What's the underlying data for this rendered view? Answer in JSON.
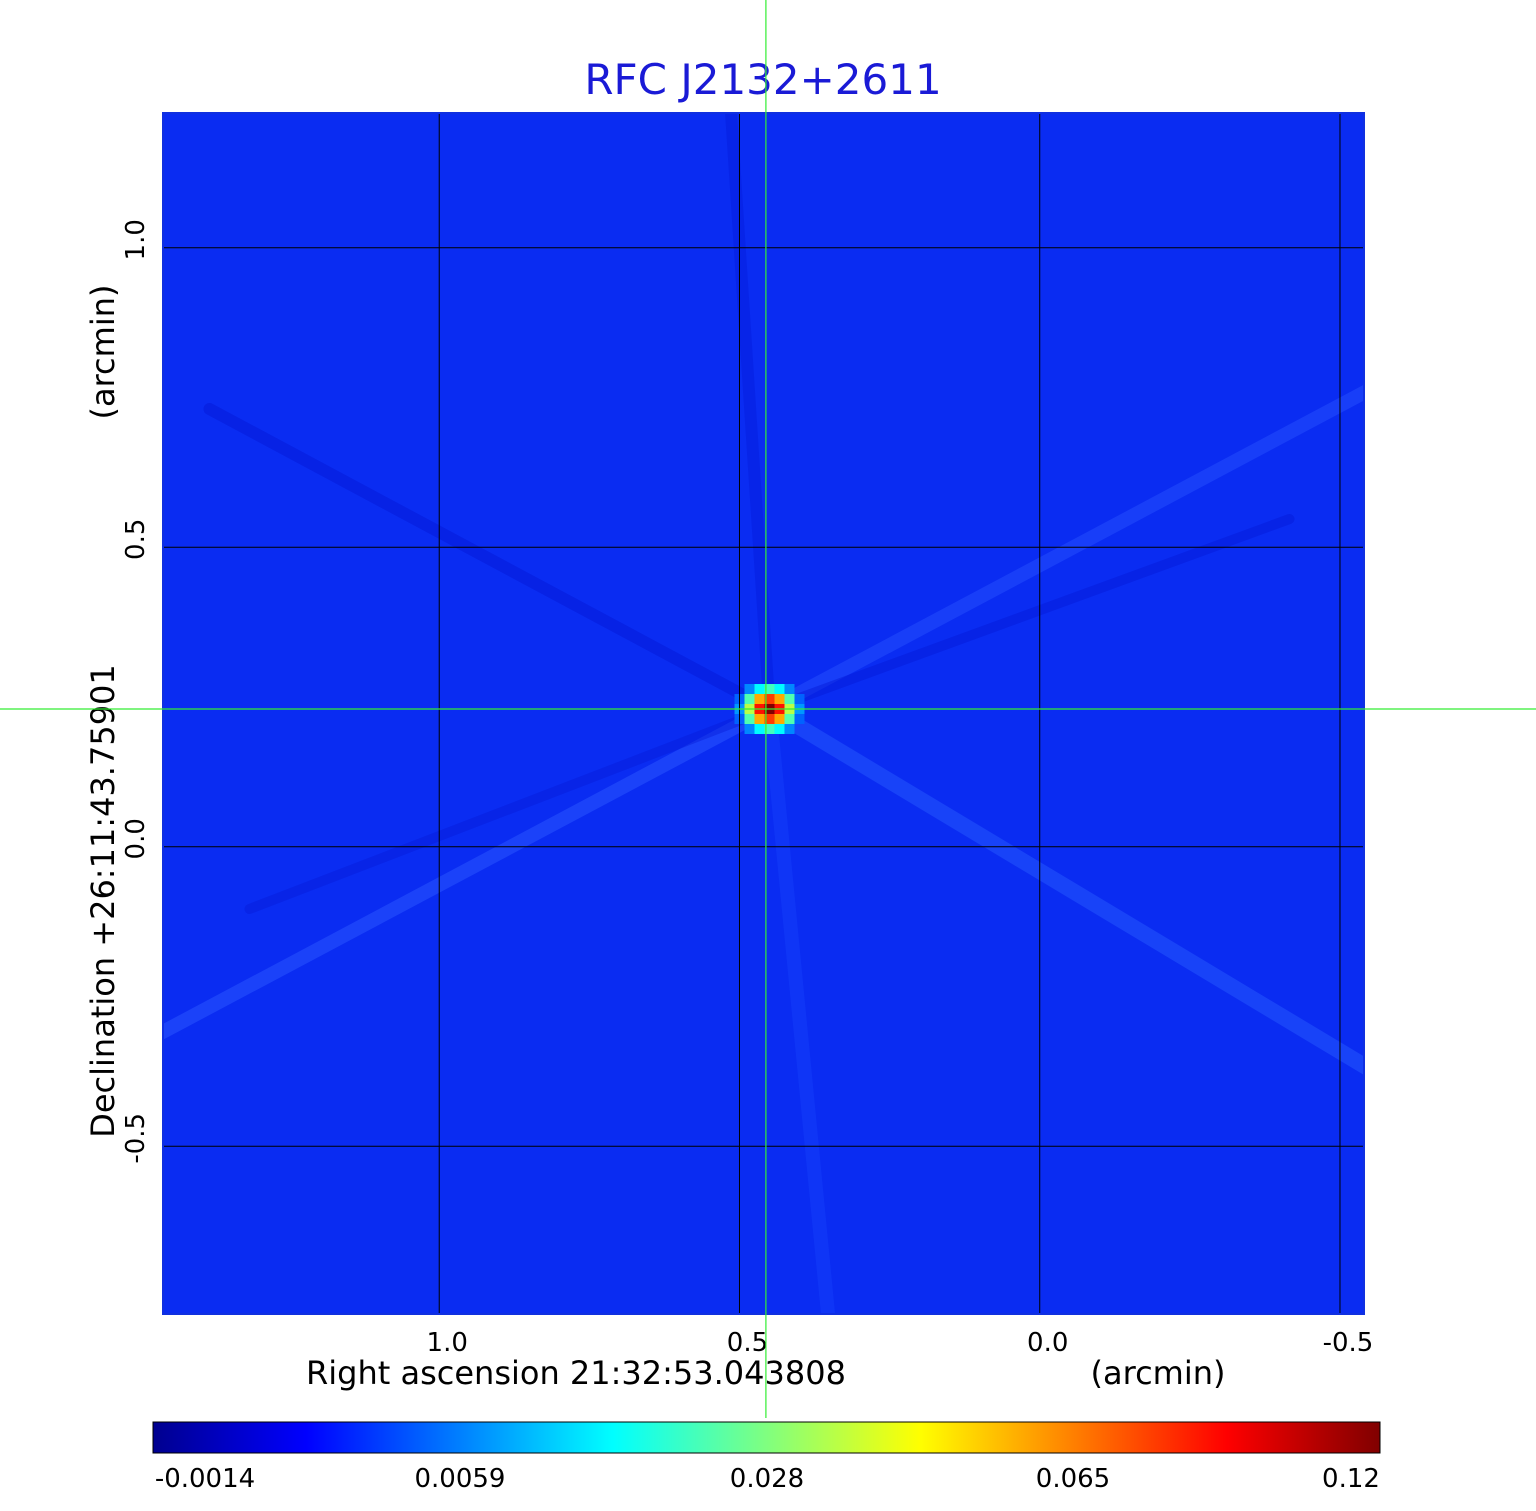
{
  "chart_data": {
    "type": "heatmap",
    "title": "RFC J2132+2611",
    "xlabel": "Right ascension  21:32:53.043808",
    "xunit": "(arcmin)",
    "ylabel": "Declination  +26:11:43.75901",
    "yunit": "(arcmin)",
    "x_ticks": [
      {
        "value": 1.0,
        "label": "1.0"
      },
      {
        "value": 0.5,
        "label": "0.5"
      },
      {
        "value": 0.0,
        "label": "0.0"
      },
      {
        "value": -0.5,
        "label": "-0.5"
      }
    ],
    "y_ticks": [
      {
        "value": 1.0,
        "label": "1.0"
      },
      {
        "value": 0.5,
        "label": "0.5"
      },
      {
        "value": 0.0,
        "label": "0.0"
      },
      {
        "value": -0.5,
        "label": "-0.5"
      }
    ],
    "xlim": [
      1.46,
      -0.54
    ],
    "ylim": [
      -0.78,
      1.225
    ],
    "x_reversed": true,
    "grid": true,
    "crosshair": {
      "x": 0.456,
      "y": 0.23
    },
    "source_peak": {
      "x": 0.45,
      "y": 0.23,
      "value": 0.12
    },
    "background_level": -0.0005,
    "colormap": "jet",
    "colorbar": {
      "ticks": [
        "-0.0014",
        "0.0059",
        "0.028",
        "0.065",
        "0.12"
      ],
      "min": -0.0014,
      "max": 0.12
    },
    "colors": {
      "title": "#1a1ad6",
      "crosshair": "#33ee33",
      "grid": "#000000"
    }
  }
}
